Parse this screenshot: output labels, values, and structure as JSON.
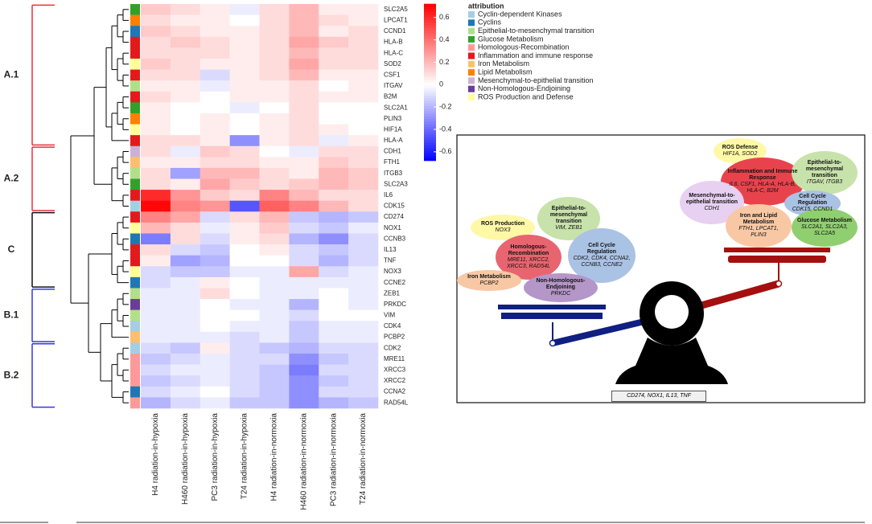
{
  "chart_data": {
    "type": "heatmap",
    "rows": [
      "SLC2A5",
      "LPCAT1",
      "CCND1",
      "HLA-B",
      "HLA-C",
      "SOD2",
      "CSF1",
      "ITGAV",
      "B2M",
      "SLC2A1",
      "PLIN3",
      "HIF1A",
      "HLA-A",
      "CDH1",
      "FTH1",
      "ITGB3",
      "SLC2A3",
      "IL6",
      "CDK15",
      "CD274",
      "NOX1",
      "CCNB3",
      "IL13",
      "TNF",
      "NOX3",
      "CCNE2",
      "ZEB1",
      "PRKDC",
      "VIM",
      "CDK4",
      "PCBP2",
      "CDK2",
      "MRE11",
      "XRCC3",
      "XRCC2",
      "CCNA2",
      "RAD54L"
    ],
    "columns": [
      "H4 radiation-in-hypoxia",
      "H460 radiation-in-hypoxia",
      "PC3 radiation-in-hypoxia",
      "T24 radiation-in-hypoxia",
      "H4 radiation-in-normoxia",
      "H460 radiation-in-normoxia",
      "PC3 radiation-in-normoxia",
      "T24 radiation-in-normoxia"
    ],
    "values": [
      [
        0.15,
        0.1,
        0.05,
        -0.05,
        0.1,
        0.2,
        0.05,
        0.05
      ],
      [
        0.1,
        0.05,
        0.05,
        0,
        0.1,
        0.2,
        0.1,
        0.05
      ],
      [
        0.15,
        0.1,
        0.05,
        0.05,
        0.1,
        0.2,
        0.05,
        0.1
      ],
      [
        0.1,
        0.15,
        0.1,
        0.05,
        0.1,
        0.25,
        0.15,
        0.1
      ],
      [
        0.1,
        0.1,
        0.1,
        0.05,
        0.1,
        0.2,
        0.1,
        0.1
      ],
      [
        0.15,
        0.1,
        0.05,
        0.05,
        0.1,
        0.25,
        0.1,
        0.1
      ],
      [
        0.1,
        0.1,
        -0.1,
        0.05,
        0.1,
        0.2,
        0.05,
        0.05
      ],
      [
        0.05,
        0.05,
        -0.05,
        0.05,
        0.05,
        0.1,
        0,
        0.05
      ],
      [
        0.1,
        0.05,
        0,
        0.05,
        0.05,
        0.1,
        0.05,
        0.05
      ],
      [
        0.05,
        0,
        0,
        -0.05,
        0,
        0.1,
        0,
        0
      ],
      [
        0.05,
        0,
        0.05,
        0,
        0.05,
        0.1,
        0,
        0
      ],
      [
        0.05,
        0,
        0.05,
        0,
        0.05,
        0.1,
        0.05,
        0
      ],
      [
        0.1,
        0.1,
        0.05,
        -0.3,
        0.05,
        0.1,
        -0.05,
        0.05
      ],
      [
        0.1,
        -0.05,
        0.15,
        0.1,
        0,
        -0.05,
        0.1,
        0.1
      ],
      [
        0.05,
        0.05,
        0.1,
        0.1,
        0.05,
        0.05,
        0.15,
        0.1
      ],
      [
        0.1,
        -0.25,
        0.2,
        0.2,
        0.1,
        0.05,
        0.2,
        0.15
      ],
      [
        0.1,
        0.05,
        0.25,
        0.15,
        0.1,
        0.15,
        0.2,
        0.15
      ],
      [
        0.6,
        0.3,
        0.15,
        0.1,
        0.35,
        0.2,
        0.1,
        0.1
      ],
      [
        0.7,
        0.35,
        0.3,
        -0.45,
        0.45,
        0.35,
        0.2,
        0.1
      ],
      [
        0.35,
        0.25,
        -0.1,
        0.1,
        0.2,
        -0.15,
        -0.2,
        -0.15
      ],
      [
        0.2,
        0.1,
        -0.05,
        0.05,
        0.15,
        -0.1,
        -0.15,
        -0.05
      ],
      [
        -0.35,
        0.1,
        -0.1,
        0.05,
        0.1,
        -0.2,
        -0.3,
        -0.1
      ],
      [
        0.1,
        -0.1,
        -0.15,
        0,
        0.05,
        -0.1,
        -0.15,
        -0.1
      ],
      [
        0.05,
        -0.25,
        -0.2,
        0,
        0,
        -0.1,
        -0.2,
        -0.1
      ],
      [
        -0.1,
        -0.15,
        -0.15,
        -0.05,
        -0.05,
        0.25,
        -0.1,
        -0.05
      ],
      [
        -0.1,
        -0.05,
        0.05,
        0,
        -0.05,
        -0.05,
        -0.05,
        -0.05
      ],
      [
        -0.05,
        -0.05,
        0.1,
        0,
        -0.05,
        -0.05,
        0,
        -0.05
      ],
      [
        -0.05,
        -0.05,
        0,
        -0.05,
        -0.05,
        -0.2,
        0,
        -0.05
      ],
      [
        -0.05,
        -0.05,
        0,
        0,
        -0.05,
        -0.1,
        0,
        0
      ],
      [
        -0.05,
        -0.05,
        0,
        -0.05,
        -0.05,
        -0.15,
        -0.05,
        -0.05
      ],
      [
        -0.05,
        -0.05,
        -0.05,
        -0.1,
        -0.05,
        -0.15,
        -0.05,
        -0.05
      ],
      [
        -0.1,
        -0.15,
        0.05,
        -0.1,
        -0.15,
        -0.2,
        -0.1,
        -0.1
      ],
      [
        -0.15,
        -0.1,
        -0.05,
        -0.1,
        -0.1,
        -0.3,
        -0.15,
        -0.1
      ],
      [
        -0.1,
        -0.05,
        -0.05,
        -0.1,
        -0.15,
        -0.35,
        -0.1,
        -0.1
      ],
      [
        -0.15,
        -0.1,
        -0.05,
        -0.1,
        -0.15,
        -0.3,
        -0.15,
        -0.1
      ],
      [
        -0.1,
        -0.05,
        0,
        -0.1,
        -0.15,
        -0.3,
        -0.1,
        -0.1
      ],
      [
        -0.2,
        -0.1,
        -0.05,
        -0.15,
        -0.15,
        -0.3,
        -0.2,
        -0.15
      ]
    ],
    "row_attribution": [
      "Glucose Metabolism",
      "Lipid Metabolism",
      "Cyclins",
      "Inflammation and immune response",
      "Inflammation and immune response",
      "ROS Production and Defense",
      "Inflammation and immune response",
      "Epithelial-to-mesenchymal transition",
      "Inflammation and immune response",
      "Glucose Metabolism",
      "Lipid Metabolism",
      "ROS Production and Defense",
      "Inflammation and immune response",
      "Mesenchymal-to-epithelial transition",
      "Iron Metabolism",
      "Epithelial-to-mesenchymal transition",
      "Glucose Metabolism",
      "Inflammation and immune response",
      "Cyclin-dependent Kinases",
      "Inflammation and immune response",
      "ROS Production and Defense",
      "Cyclins",
      "Inflammation and immune response",
      "Inflammation and immune response",
      "ROS Production and Defense",
      "Cyclins",
      "Epithelial-to-mesenchymal transition",
      "Non-Homologous-Endjoining",
      "Epithelial-to-mesenchymal transition",
      "Cyclin-dependent Kinases",
      "Iron Metabolism",
      "Cyclin-dependent Kinases",
      "Homologous-Recombination",
      "Homologous-Recombination",
      "Homologous-Recombination",
      "Cyclins",
      "Homologous-Recombination"
    ],
    "clim": [
      -0.68,
      0.72
    ],
    "cticks": [
      0.6,
      0.4,
      0.2,
      0,
      -0.2,
      -0.4,
      -0.6
    ],
    "colors": {
      "low": "#0000ff",
      "mid": "#ffffff",
      "high": "#ff0000"
    },
    "legend": {
      "title": "attribution",
      "items": [
        {
          "name": "Cyclin-dependent Kinases",
          "color": "#a6cee3"
        },
        {
          "name": "Cyclins",
          "color": "#1f78b4"
        },
        {
          "name": "Epithelial-to-mesenchymal transition",
          "color": "#b2df8a"
        },
        {
          "name": "Glucose Metabolism",
          "color": "#33a02c"
        },
        {
          "name": "Homologous-Recombination",
          "color": "#fb9a99"
        },
        {
          "name": "Inflammation and immune response",
          "color": "#e31a1c"
        },
        {
          "name": "Iron Metabolism",
          "color": "#fdbf6f"
        },
        {
          "name": "Lipid Metabolism",
          "color": "#ff7f00"
        },
        {
          "name": "Mesenchymal-to-epithelial transition",
          "color": "#cab2d6"
        },
        {
          "name": "Non-Homologous-Endjoining",
          "color": "#6a3d9a"
        },
        {
          "name": "ROS Production and Defense",
          "color": "#ffff99"
        }
      ]
    },
    "clusters": [
      {
        "label": "A.1",
        "color": "#e8313c",
        "rows": [
          0,
          12
        ]
      },
      {
        "label": "A.2",
        "color": "#e8313c",
        "rows": [
          13,
          18
        ]
      },
      {
        "label": "C",
        "color": "#111111",
        "rows": [
          19,
          25
        ]
      },
      {
        "label": "B.1",
        "color": "#3535e0",
        "rows": [
          26,
          30
        ]
      },
      {
        "label": "B.2",
        "color": "#3535e0",
        "rows": [
          31,
          36
        ]
      }
    ]
  },
  "diagram": {
    "left": [
      {
        "title": "ROS Production",
        "genes": "NOX3",
        "color": "#fff8a6"
      },
      {
        "title": "Epithelial-to-mesenchymal transition",
        "genes": "VIM, ZEB1",
        "color": "#c8e2ab"
      },
      {
        "title": "Homologous-Recombination",
        "genes": "MRE11, XRCC2, XRCC3, RAD54L",
        "color": "#e8656f"
      },
      {
        "title": "Cell Cycle Regulation",
        "genes": "CDK2, CDK4, CCNA2, CCNB3, CCNE2",
        "color": "#aac2e4"
      },
      {
        "title": "Iron Metabolism",
        "genes": "PCBP2",
        "color": "#f8c8a4"
      },
      {
        "title": "Non-Homologous-Endjoining",
        "genes": "PRKDC",
        "color": "#b596c8"
      }
    ],
    "right": [
      {
        "title": "ROS Defense",
        "genes": "HIF1A, SOD2",
        "color": "#fff8a6"
      },
      {
        "title": "Inflammation and Immune Response",
        "genes": "IL6, CSF1, HLA-A, HLA-B, HLA-C, B2M",
        "color": "#e8434d"
      },
      {
        "title": "Epithelial-to-mesenchymal transition",
        "genes": "ITGAV, ITGB3",
        "color": "#c8e2ab"
      },
      {
        "title": "Mesenchymal-to-epithelial transition",
        "genes": "CDH1",
        "color": "#e7d0f1"
      },
      {
        "title": "Cell Cycle Regulation",
        "genes": "CDK15, CCND1",
        "color": "#aac2e4"
      },
      {
        "title": "Iron and Lipid Metabolism",
        "genes": "FTH1, LPCAT1, PLIN3",
        "color": "#f8c8a4"
      },
      {
        "title": "Glucose Metabolism",
        "genes": "SLC2A1, SLC2A3, SLC2A5",
        "color": "#90cf70"
      }
    ],
    "base": "CD274, NOX1, IL13, TNF"
  }
}
